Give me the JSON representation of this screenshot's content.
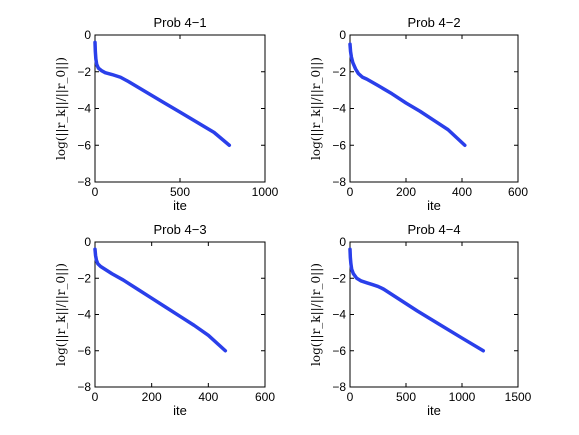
{
  "chart_data": [
    {
      "type": "line",
      "title": "Prob 4−1",
      "xlabel": "ite",
      "ylabel": "log(||r_k||/||r_0||)",
      "xlim": [
        0,
        1000
      ],
      "ylim": [
        -8,
        0
      ],
      "xticks": [
        0,
        500,
        1000
      ],
      "yticks": [
        0,
        -2,
        -4,
        -6,
        -8
      ],
      "grid": false,
      "series": [
        {
          "color": "#2a3fea",
          "x": [
            0,
            2,
            5,
            10,
            20,
            40,
            60,
            100,
            150,
            200,
            300,
            400,
            500,
            600,
            700,
            790
          ],
          "y": [
            -0.4,
            -0.9,
            -1.3,
            -1.6,
            -1.8,
            -1.95,
            -2.05,
            -2.15,
            -2.3,
            -2.55,
            -3.1,
            -3.65,
            -4.2,
            -4.75,
            -5.3,
            -6.0
          ]
        }
      ]
    },
    {
      "type": "line",
      "title": "Prob 4−2",
      "xlabel": "ite",
      "ylabel": "log(||r_k||/||r_0||)",
      "xlim": [
        0,
        600
      ],
      "ylim": [
        -8,
        0
      ],
      "xticks": [
        0,
        200,
        400,
        600
      ],
      "yticks": [
        0,
        -2,
        -4,
        -6,
        -8
      ],
      "grid": false,
      "series": [
        {
          "color": "#2a3fea",
          "x": [
            0,
            2,
            5,
            10,
            20,
            30,
            45,
            60,
            100,
            150,
            200,
            250,
            300,
            350,
            410
          ],
          "y": [
            -0.5,
            -0.9,
            -1.2,
            -1.5,
            -1.85,
            -2.1,
            -2.3,
            -2.4,
            -2.75,
            -3.2,
            -3.7,
            -4.15,
            -4.65,
            -5.15,
            -6.0
          ]
        }
      ]
    },
    {
      "type": "line",
      "title": "Prob 4−3",
      "xlabel": "ite",
      "ylabel": "log(||r_k||/||r_0||)",
      "xlim": [
        0,
        600
      ],
      "ylim": [
        -8,
        0
      ],
      "xticks": [
        0,
        200,
        400,
        600
      ],
      "yticks": [
        0,
        -2,
        -4,
        -6,
        -8
      ],
      "grid": false,
      "series": [
        {
          "color": "#2a3fea",
          "x": [
            0,
            2,
            5,
            10,
            20,
            40,
            60,
            100,
            150,
            200,
            250,
            300,
            350,
            400,
            460
          ],
          "y": [
            -0.4,
            -0.75,
            -1.0,
            -1.2,
            -1.35,
            -1.55,
            -1.75,
            -2.1,
            -2.6,
            -3.1,
            -3.6,
            -4.1,
            -4.6,
            -5.15,
            -6.0
          ]
        }
      ]
    },
    {
      "type": "line",
      "title": "Prob 4−4",
      "xlabel": "ite",
      "ylabel": "log(||r_k||/||r_0||)",
      "xlim": [
        0,
        1500
      ],
      "ylim": [
        -8,
        0
      ],
      "xticks": [
        0,
        500,
        1000,
        1500
      ],
      "yticks": [
        0,
        -2,
        -4,
        -6,
        -8
      ],
      "grid": false,
      "series": [
        {
          "color": "#2a3fea",
          "x": [
            0,
            3,
            8,
            15,
            30,
            60,
            100,
            150,
            200,
            250,
            300,
            400,
            600,
            800,
            1000,
            1190
          ],
          "y": [
            -0.4,
            -0.85,
            -1.2,
            -1.5,
            -1.75,
            -2.0,
            -2.15,
            -2.25,
            -2.35,
            -2.45,
            -2.6,
            -3.0,
            -3.8,
            -4.55,
            -5.3,
            -6.0
          ]
        }
      ]
    }
  ]
}
